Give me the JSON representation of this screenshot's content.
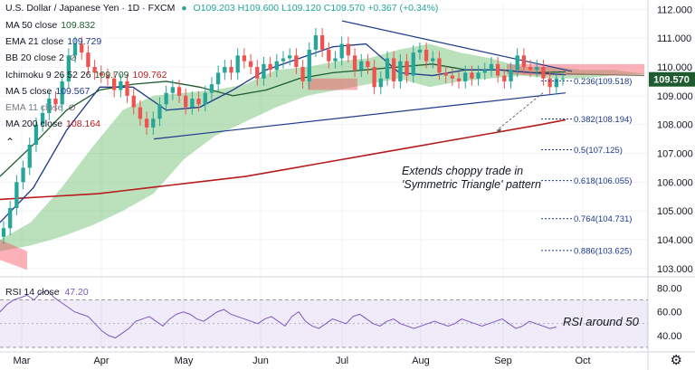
{
  "header": {
    "symbol": "U.S. Dollar / Japanese Yen · 1D · FXCM",
    "ohlc": "O109.203 H109.600 L109.120 C109.570 +0.367 (+0.34%)"
  },
  "legend": [
    {
      "label": "MA 50 close",
      "value": "109.832",
      "color": "#1e5b2e"
    },
    {
      "label": "EMA 21 close",
      "value": "109.729",
      "color": "#1e3a8a"
    },
    {
      "label": "BB 20 close 2",
      "value": "",
      "color": "#2962ff"
    },
    {
      "label": "Ichimoku 9 26 52 26",
      "value": "109.709",
      "value2": "109.762",
      "color": "#1e5b2e"
    },
    {
      "label": "MA 5 close",
      "value": "109.567",
      "color": "#1e3a8a"
    },
    {
      "label": "EMA 11 close",
      "value": "",
      "color": "#787b86"
    },
    {
      "label": "MA 200 close",
      "value": "108.164",
      "color": "#b71c1c"
    }
  ],
  "rsi_legend": {
    "label": "RSI 14 close",
    "value": "47.20"
  },
  "colors": {
    "up": "#26a69a",
    "down": "#ef5350",
    "ma200": "#b71c1c",
    "ma50": "#1e5b2e",
    "ema21": "#1e3a8a",
    "cloud_green": "#4caf50",
    "cloud_red": "#f7525f",
    "rsi": "#7e57c2",
    "fib": "#1e3a8a",
    "trend": "#1e3a8a"
  },
  "chart_data": {
    "type": "line",
    "symbol": "USDJPY",
    "y_ticks": [
      "112.000",
      "111.000",
      "110.000",
      "109.000",
      "108.000",
      "107.000",
      "106.000",
      "105.000",
      "104.000",
      "103.000"
    ],
    "y_range": [
      102.9,
      112.2
    ],
    "x_ticks": [
      "Mar",
      "Apr",
      "May",
      "Jun",
      "Jul",
      "Aug",
      "Sep",
      "Oct"
    ],
    "last_price": "109.570",
    "fib_levels": [
      {
        "label": "0.236(109.518)",
        "value": 109.518
      },
      {
        "label": "0.382(108.194)",
        "value": 108.194
      },
      {
        "label": "0.5(107.125)",
        "value": 107.125
      },
      {
        "label": "0.618(106.055)",
        "value": 106.055
      },
      {
        "label": "0.764(104.731)",
        "value": 104.731
      },
      {
        "label": "0.886(103.625)",
        "value": 103.625
      }
    ],
    "annotations": {
      "main": "Extends choppy trade in 'Symmetric Triangle' pattern",
      "rsi": "RSI around 50"
    },
    "rsi_ticks": [
      "80.00",
      "60.00",
      "40.00"
    ],
    "rsi_range": [
      30,
      85
    ],
    "close": [
      104.4,
      105.1,
      106.0,
      106.5,
      107.3,
      108.0,
      108.4,
      108.9,
      108.7,
      109.5,
      110.4,
      110.8,
      110.5,
      110.0,
      109.8,
      109.7,
      109.6,
      109.2,
      109.5,
      109.0,
      108.6,
      108.2,
      107.9,
      108.2,
      108.7,
      109.1,
      109.3,
      109.0,
      108.6,
      108.9,
      108.7,
      109.1,
      109.4,
      109.8,
      110.0,
      109.8,
      110.4,
      110.2,
      110.0,
      109.6,
      110.1,
      109.9,
      110.2,
      110.3,
      110.4,
      110.0,
      109.5,
      110.6,
      111.1,
      110.6,
      110.2,
      110.3,
      110.8,
      110.4,
      109.9,
      110.2,
      110.0,
      109.3,
      109.6,
      110.3,
      109.5,
      110.2,
      109.7,
      110.5,
      110.6,
      110.2,
      110.3,
      109.8,
      109.7,
      109.6,
      109.5,
      109.8,
      109.6,
      109.8,
      109.9,
      110.1,
      109.7,
      109.5,
      109.9,
      110.4,
      110.0,
      109.9,
      110.0,
      109.6,
      109.3,
      109.6,
      109.6
    ],
    "ma200": [
      105.4,
      105.45,
      105.5,
      105.55,
      105.6,
      105.7,
      105.8,
      105.9,
      106.0,
      106.1,
      106.2,
      106.35,
      106.5,
      106.65,
      106.8,
      106.95,
      107.1,
      107.25,
      107.4,
      107.55,
      107.7,
      107.85,
      108.0,
      108.164
    ],
    "ma50": [
      106.2,
      107.3,
      108.5,
      109.2,
      109.4,
      109.5,
      109.3,
      109.0,
      109.2,
      109.6,
      109.8,
      109.9,
      110.0,
      110.1,
      109.9,
      109.9,
      109.8,
      109.832
    ],
    "ema21": [
      104.6,
      105.8,
      107.8,
      109.3,
      109.3,
      108.5,
      108.6,
      109.2,
      109.9,
      110.3,
      110.7,
      110.8,
      109.8,
      109.7,
      109.9,
      109.9,
      109.8,
      109.729
    ],
    "cloud_top": [
      104.0,
      104.6,
      105.8,
      107.2,
      108.5,
      109.0,
      109.1,
      109.2,
      109.4,
      109.9,
      110.0,
      110.2,
      110.3,
      110.6,
      110.8,
      110.5,
      110.3,
      110.0,
      110.0,
      109.9,
      109.9,
      109.762
    ],
    "cloud_bottom": [
      103.6,
      103.8,
      104.1,
      104.5,
      105.0,
      105.6,
      106.8,
      107.6,
      108.1,
      108.6,
      109.0,
      109.2,
      109.4,
      109.6,
      109.3,
      109.5,
      109.6,
      109.7,
      109.6,
      109.6,
      109.709,
      109.709
    ],
    "rsi": [
      60,
      66,
      70,
      72,
      74,
      70,
      76,
      78,
      72,
      68,
      64,
      60,
      58,
      56,
      50,
      44,
      40,
      38,
      42,
      46,
      52,
      54,
      56,
      52,
      48,
      54,
      58,
      60,
      58,
      54,
      52,
      56,
      60,
      62,
      58,
      56,
      54,
      52,
      50,
      54,
      56,
      52,
      48,
      56,
      60,
      52,
      48,
      46,
      50,
      54,
      52,
      50,
      56,
      58,
      54,
      50,
      48,
      52,
      54,
      50,
      48,
      46,
      48,
      50,
      52,
      50,
      48,
      50,
      54,
      52,
      50,
      48,
      50,
      52,
      54,
      50,
      46,
      48,
      52,
      50,
      48,
      46,
      47.2
    ]
  }
}
